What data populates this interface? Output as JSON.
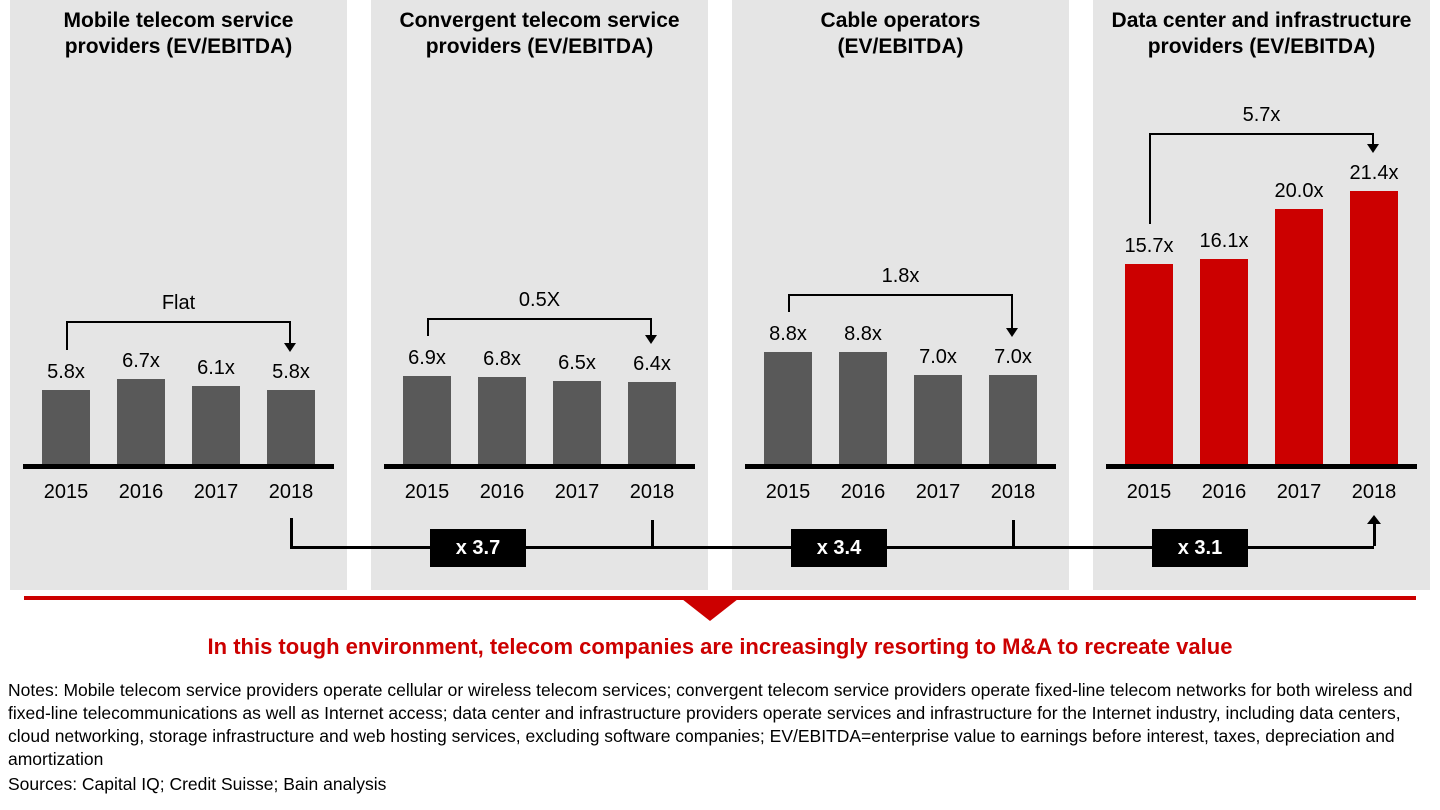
{
  "chart_data": {
    "type": "bar",
    "categories": [
      "2015",
      "2016",
      "2017",
      "2018"
    ],
    "ylim": [
      0,
      22
    ],
    "grid": false,
    "panels": [
      {
        "title": "Mobile telecom service providers (EV/EBITDA)",
        "values": [
          5.8,
          6.7,
          6.1,
          5.8
        ],
        "value_labels": [
          "5.8x",
          "6.7x",
          "6.1x",
          "5.8x"
        ],
        "bracket_label": "Flat",
        "bar_color": "#595959"
      },
      {
        "title": "Convergent telecom service providers (EV/EBITDA)",
        "values": [
          6.9,
          6.8,
          6.5,
          6.4
        ],
        "value_labels": [
          "6.9x",
          "6.8x",
          "6.5x",
          "6.4x"
        ],
        "bracket_label": "0.5X",
        "bar_color": "#595959"
      },
      {
        "title": "Cable operators (EV/EBITDA)",
        "values": [
          8.8,
          8.8,
          7.0,
          7.0
        ],
        "value_labels": [
          "8.8x",
          "8.8x",
          "7.0x",
          "7.0x"
        ],
        "bracket_label": "1.8x",
        "bar_color": "#595959"
      },
      {
        "title": "Data center and infrastructure providers (EV/EBITDA)",
        "values": [
          15.7,
          16.1,
          20.0,
          21.4
        ],
        "value_labels": [
          "15.7x",
          "16.1x",
          "20.0x",
          "21.4x"
        ],
        "bracket_label": "5.7x",
        "bar_color": "#cc0000"
      }
    ],
    "multiplier_badges": [
      "x 3.7",
      "x 3.4",
      "x 3.1"
    ]
  },
  "headline": "In this tough environment, telecom companies are increasingly resorting to M&A to recreate value",
  "notes": "Notes: Mobile telecom service providers operate cellular or wireless telecom services; convergent telecom service providers operate fixed-line telecom networks for both wireless and fixed-line telecommunications as well as Internet access; data center and infrastructure providers operate services and infrastructure for the Internet industry, including data centers, cloud networking, storage infrastructure and web hosting services, excluding software companies; EV/EBITDA=enterprise value to earnings before interest, taxes, depreciation and amortization",
  "sources": "Sources: Capital IQ; Credit Suisse; Bain analysis",
  "colors": {
    "panel_bg": "#e5e5e5",
    "bar_gray": "#595959",
    "bar_red": "#cc0000",
    "headline_red": "#cc0000",
    "connector_black": "#000000"
  }
}
